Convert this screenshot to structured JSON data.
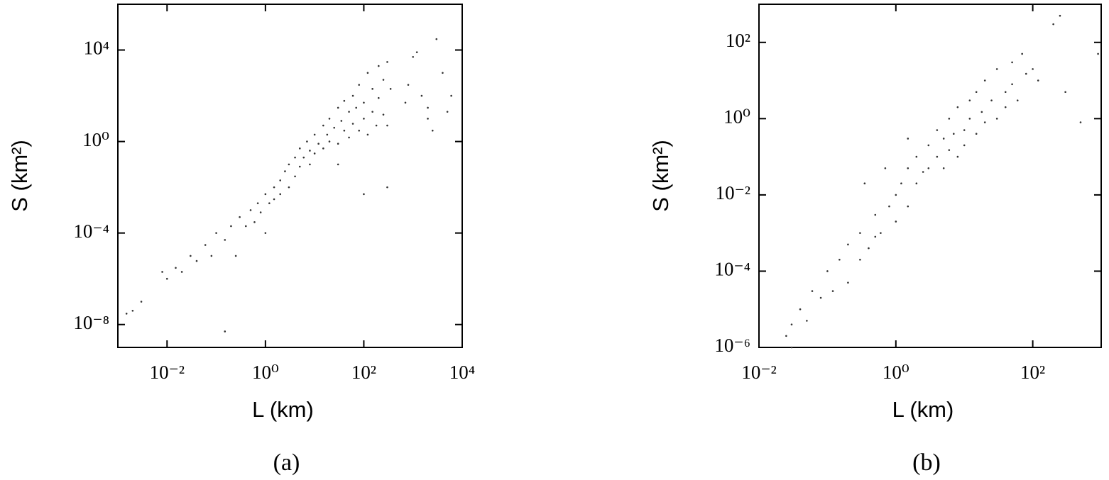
{
  "chart_data": [
    {
      "type": "scatter",
      "caption": "(a)",
      "x_label": "L (km)",
      "y_label": "S (km²)",
      "xscale": "log",
      "yscale": "log",
      "color": "#333333",
      "xlim": [
        0.001,
        10000
      ],
      "ylim": [
        1e-09,
        1000000
      ],
      "xticks": [
        {
          "value": 0.01,
          "label": "10⁻²"
        },
        {
          "value": 1,
          "label": "10⁰"
        },
        {
          "value": 100,
          "label": "10²"
        },
        {
          "value": 10000,
          "label": "10⁴"
        }
      ],
      "yticks": [
        {
          "value": 1e-08,
          "label": "10⁻⁸"
        },
        {
          "value": 0.0001,
          "label": "10⁻⁴"
        },
        {
          "value": 1,
          "label": "10⁰"
        },
        {
          "value": 10000,
          "label": "10⁴"
        }
      ],
      "x": [
        0.0015,
        0.003,
        0.002,
        0.008,
        0.01,
        0.015,
        0.02,
        0.03,
        0.04,
        0.06,
        0.08,
        0.1,
        0.15,
        0.15,
        0.2,
        0.25,
        0.3,
        0.4,
        0.5,
        0.6,
        0.7,
        0.8,
        1,
        1.2,
        1.5,
        1.5,
        2,
        2,
        2.5,
        3,
        3,
        4,
        4,
        5,
        5,
        6,
        7,
        8,
        8,
        10,
        10,
        12,
        15,
        15,
        18,
        20,
        20,
        25,
        30,
        30,
        35,
        40,
        40,
        50,
        50,
        60,
        60,
        70,
        80,
        80,
        100,
        100,
        120,
        120,
        150,
        150,
        180,
        200,
        200,
        250,
        250,
        300,
        300,
        350,
        300,
        1000,
        1500,
        2000,
        2000,
        3000,
        4000,
        5000,
        6000,
        700,
        800,
        1200,
        2500,
        100,
        30,
        1
      ],
      "values": [
        3e-08,
        1e-07,
        4e-08,
        2e-06,
        1e-06,
        3e-06,
        2e-06,
        1e-05,
        6e-06,
        3e-05,
        1e-05,
        0.0001,
        5e-05,
        5e-09,
        0.0002,
        1e-05,
        0.0005,
        0.0002,
        0.001,
        0.0003,
        0.002,
        0.0008,
        0.005,
        0.002,
        0.01,
        0.003,
        0.02,
        0.005,
        0.05,
        0.01,
        0.1,
        0.03,
        0.2,
        0.08,
        0.5,
        0.2,
        1,
        0.1,
        0.4,
        2,
        0.3,
        0.8,
        5,
        0.5,
        2,
        10,
        1,
        4,
        30,
        0.8,
        8,
        3,
        60,
        20,
        1.5,
        100,
        6,
        30,
        3,
        300,
        50,
        10,
        1000,
        2,
        200,
        20,
        5,
        2000,
        80,
        500,
        15,
        3000,
        5,
        200,
        0.01,
        5000,
        100,
        10,
        30,
        30000,
        1000,
        20,
        100,
        50,
        300,
        8000,
        3,
        0.005,
        0.1,
        0.0001
      ]
    },
    {
      "type": "scatter",
      "caption": "(b)",
      "x_label": "L (km)",
      "y_label": "S (km²)",
      "xscale": "log",
      "yscale": "log",
      "color": "#333333",
      "xlim": [
        0.01,
        1000
      ],
      "ylim": [
        1e-06,
        1000
      ],
      "xticks": [
        {
          "value": 0.01,
          "label": "10⁻²"
        },
        {
          "value": 1,
          "label": "10⁰"
        },
        {
          "value": 100,
          "label": "10²"
        }
      ],
      "yticks": [
        {
          "value": 1e-06,
          "label": "10⁻⁶"
        },
        {
          "value": 0.0001,
          "label": "10⁻⁴"
        },
        {
          "value": 0.01,
          "label": "10⁻²"
        },
        {
          "value": 1,
          "label": "10⁰"
        },
        {
          "value": 100,
          "label": "10²"
        }
      ],
      "x": [
        0.025,
        0.03,
        0.03,
        0.04,
        0.05,
        0.06,
        0.08,
        0.1,
        0.12,
        0.15,
        0.2,
        0.2,
        0.3,
        0.3,
        0.4,
        0.5,
        0.5,
        0.6,
        0.8,
        1,
        1,
        1.2,
        1.5,
        1.5,
        2,
        2,
        2.5,
        3,
        3,
        4,
        4,
        5,
        5,
        6,
        6,
        7,
        8,
        8,
        10,
        10,
        12,
        12,
        15,
        15,
        18,
        20,
        20,
        25,
        30,
        30,
        40,
        40,
        50,
        50,
        60,
        70,
        80,
        100,
        120,
        200,
        250,
        300,
        900,
        500,
        0.35,
        0.7,
        1.5
      ],
      "values": [
        2e-06,
        1e-06,
        4e-06,
        1e-05,
        5e-06,
        3e-05,
        2e-05,
        0.0001,
        3e-05,
        0.0002,
        5e-05,
        0.0005,
        0.0002,
        0.001,
        0.0004,
        0.003,
        0.0008,
        0.001,
        0.005,
        0.01,
        0.002,
        0.02,
        0.005,
        0.05,
        0.02,
        0.1,
        0.04,
        0.2,
        0.05,
        0.1,
        0.5,
        0.05,
        0.3,
        1,
        0.15,
        0.4,
        0.1,
        2,
        0.5,
        0.2,
        1,
        3,
        0.4,
        5,
        1.5,
        0.8,
        10,
        3,
        1,
        20,
        5,
        2,
        30,
        8,
        3,
        50,
        15,
        20,
        10,
        300,
        500,
        5,
        50,
        0.8,
        0.02,
        0.05,
        0.3
      ]
    }
  ]
}
